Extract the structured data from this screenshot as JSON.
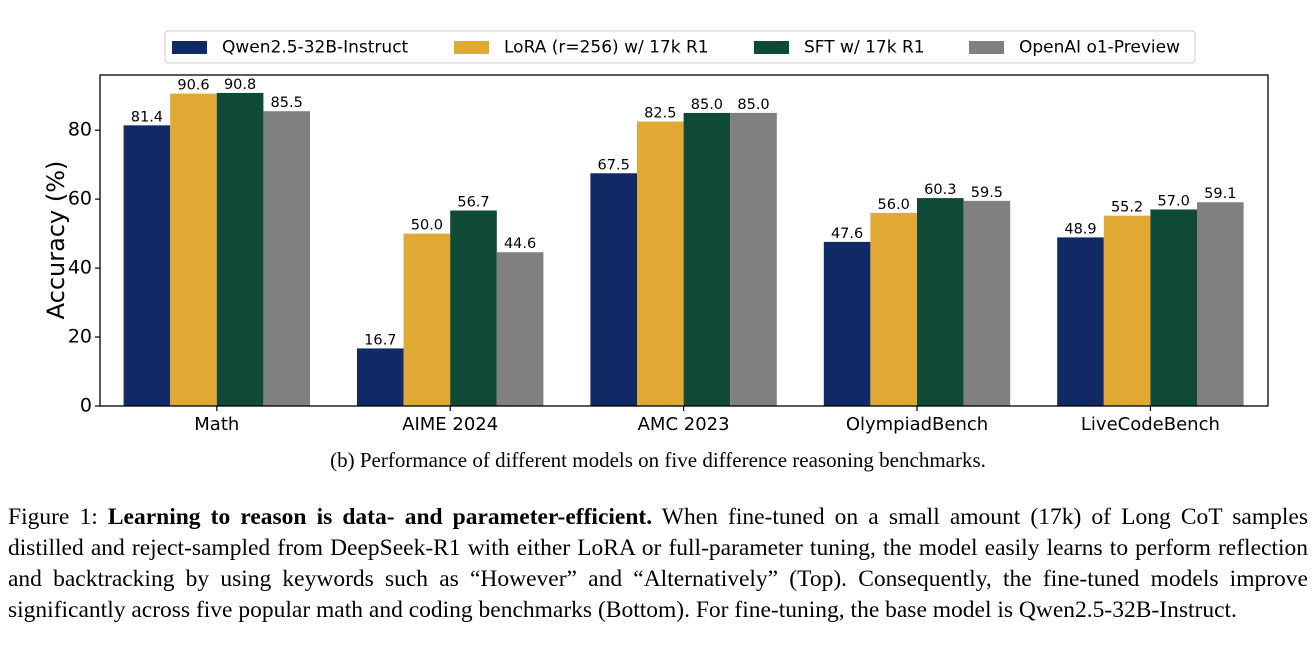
{
  "chart_data": {
    "type": "bar",
    "categories": [
      "Math",
      "AIME 2024",
      "AMC 2023",
      "OlympiadBench",
      "LiveCodeBench"
    ],
    "series": [
      {
        "name": "Qwen2.5-32B-Instruct",
        "color": "#112a66",
        "values": [
          81.4,
          16.7,
          67.5,
          47.6,
          48.9
        ],
        "labels": [
          "81.4",
          "16.7",
          "67.5",
          "47.6",
          "48.9"
        ]
      },
      {
        "name": "LoRA (r=256) w/ 17k R1",
        "color": "#e0a934",
        "values": [
          90.6,
          50.0,
          82.5,
          56.0,
          55.2
        ],
        "labels": [
          "90.6",
          "50.0",
          "82.5",
          "56.0",
          "55.2"
        ]
      },
      {
        "name": "SFT w/ 17k R1",
        "color": "#0f4a36",
        "values": [
          90.8,
          56.7,
          85.0,
          60.3,
          57.0
        ],
        "labels": [
          "90.8",
          "56.7",
          "85.0",
          "60.3",
          "57.0"
        ]
      },
      {
        "name": "OpenAI o1-Preview",
        "color": "#808080",
        "values": [
          85.5,
          44.6,
          85.0,
          59.5,
          59.1
        ],
        "labels": [
          "85.5",
          "44.6",
          "85.0",
          "59.5",
          "59.1"
        ]
      }
    ],
    "ylabel": "Accuracy (%)",
    "xlabel": "",
    "ylim": [
      0,
      96
    ],
    "yticks": [
      0,
      20,
      40,
      60,
      80
    ],
    "grid": false,
    "legend": "top-center"
  },
  "captions": {
    "sub": "(b) Performance of different models on five difference reasoning benchmarks.",
    "figure_prefix": "Figure 1: ",
    "figure_bold": "Learning to reason is data- and parameter-efficient.",
    "figure_text": " When fine-tuned on a small amount (17k) of Long CoT samples distilled and reject-sampled from DeepSeek-R1 with either LoRA or full-parameter tuning, the model easily learns to perform reflection and backtracking by using keywords such as “However” and “Alternatively” (Top). Consequently, the fine-tuned models improve significantly across five popular math and coding benchmarks (Bottom). For fine-tuning, the base model is Qwen2.5-32B-Instruct."
  }
}
